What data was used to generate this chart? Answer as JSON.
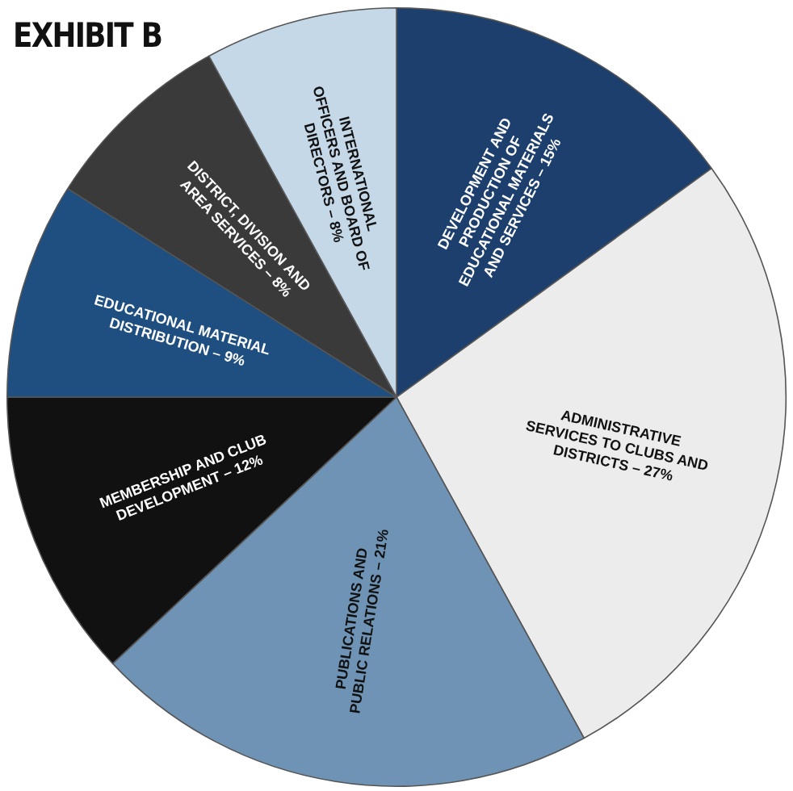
{
  "chart_data": {
    "type": "pie",
    "title": "EXHIBIT B",
    "categories": [
      "DEVELOPMENT AND PRODUCTION OF EDUCATIONAL MATERIALS AND SERVICES – 15%",
      "ADMINISTRATIVE SERVICES TO CLUBS AND DISTRICTS – 27%",
      "PUBLICATIONS AND PUBLIC RELATIONS – 21%",
      "MEMBERSHIP AND CLUB DEVELOPMENT – 12%",
      "EDUCATIONAL MATERIAL DISTRIBUTION – 9%",
      "DISTRICT, DIVISION AND AREA SERVICES – 8%",
      "INTERNATIONAL OFFICERS AND BOARD OF DIRECTORS – 8%"
    ],
    "values": [
      15,
      27,
      21,
      12,
      9,
      8,
      8
    ],
    "colors": [
      "#1d3f6e",
      "#ececec",
      "#6f93b5",
      "#111111",
      "#1f4f80",
      "#3a3a3a",
      "#c5d8e8"
    ]
  }
}
